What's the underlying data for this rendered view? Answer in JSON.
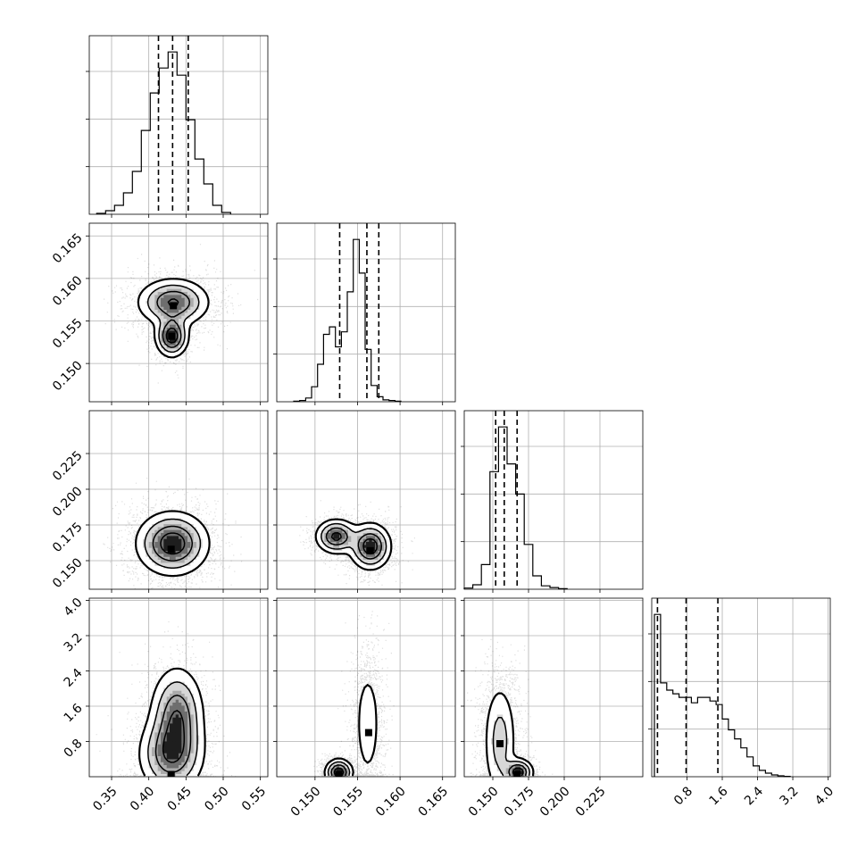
{
  "chart_data": {
    "type": "corner",
    "parameters": 4,
    "grid": true,
    "colors": {
      "line": "#000000",
      "grid": "#b0b0b0",
      "scatter": "#000000"
    },
    "axes": {
      "p0": {
        "range": [
          0.32,
          0.56
        ],
        "ticks": [
          0.35,
          0.4,
          0.45,
          0.5,
          0.55
        ],
        "tick_labels": [
          "0.35",
          "0.40",
          "0.45",
          "0.50",
          "0.55"
        ]
      },
      "p1": {
        "range": [
          0.1455,
          0.1665
        ],
        "ticks": [
          0.15,
          0.155,
          0.16,
          0.165
        ],
        "tick_labels": [
          "0.150",
          "0.155",
          "0.160",
          "0.165"
        ]
      },
      "p2": {
        "range": [
          0.13,
          0.255
        ],
        "ticks": [
          0.15,
          0.175,
          0.2,
          0.225
        ],
        "tick_labels": [
          "0.150",
          "0.175",
          "0.200",
          "0.225"
        ]
      },
      "p3": {
        "range": [
          0.0,
          4.05
        ],
        "ticks": [
          0.8,
          1.6,
          2.4,
          3.2,
          4.0
        ],
        "tick_labels": [
          "0.8",
          "1.6",
          "2.4",
          "3.2",
          "4.0"
        ]
      }
    },
    "histograms": [
      {
        "param": "p0",
        "bin_edges": [
          0.33,
          0.342,
          0.354,
          0.366,
          0.378,
          0.39,
          0.402,
          0.414,
          0.426,
          0.438,
          0.45,
          0.462,
          0.474,
          0.486,
          0.498,
          0.51
        ],
        "counts": [
          0.05,
          0.2,
          0.5,
          1.2,
          2.4,
          4.7,
          6.8,
          8.2,
          9.1,
          7.8,
          5.3,
          3.1,
          1.7,
          0.5,
          0.1
        ],
        "quantiles": [
          0.413,
          0.432,
          0.453
        ]
      },
      {
        "param": "p1",
        "bin_edges": [
          0.1475,
          0.1482,
          0.1489,
          0.1496,
          0.1503,
          0.151,
          0.1517,
          0.1524,
          0.1531,
          0.1538,
          0.1545,
          0.1552,
          0.1559,
          0.1566,
          0.1573,
          0.158,
          0.1587,
          0.1594,
          0.1601
        ],
        "counts": [
          0.05,
          0.1,
          0.3,
          1.2,
          3.0,
          5.4,
          6.0,
          4.4,
          5.6,
          8.8,
          13.0,
          10.3,
          4.2,
          1.3,
          0.4,
          0.15,
          0.1,
          0.05
        ],
        "quantiles": [
          0.1529,
          0.1561,
          0.1575
        ]
      },
      {
        "param": "p2",
        "bin_edges": [
          0.13,
          0.136,
          0.142,
          0.148,
          0.154,
          0.16,
          0.166,
          0.172,
          0.178,
          0.184,
          0.19,
          0.196,
          0.202
        ],
        "counts": [
          0.1,
          0.4,
          2.2,
          10.5,
          14.5,
          11.2,
          8.5,
          4.0,
          1.2,
          0.3,
          0.15,
          0.05
        ],
        "quantiles": [
          0.152,
          0.158,
          0.167
        ]
      },
      {
        "param": "p3",
        "bin_edges": [
          0.06,
          0.2,
          0.34,
          0.48,
          0.62,
          0.76,
          0.9,
          1.04,
          1.18,
          1.32,
          1.46,
          1.6,
          1.74,
          1.88,
          2.02,
          2.16,
          2.3,
          2.44,
          2.58,
          2.72,
          2.86,
          3.0,
          3.14
        ],
        "counts": [
          9.0,
          5.2,
          4.8,
          4.6,
          4.4,
          4.4,
          4.1,
          4.4,
          4.4,
          4.2,
          4.0,
          3.2,
          2.6,
          2.1,
          1.6,
          1.1,
          0.6,
          0.35,
          0.2,
          0.1,
          0.05,
          0.02
        ],
        "quantiles": [
          0.13,
          0.78,
          1.5
        ]
      }
    ],
    "pairs": [
      {
        "x": "p0",
        "y": "p1",
        "modes": [
          {
            "x": 0.433,
            "y": 0.1572,
            "sx": 0.024,
            "sy": 0.0014,
            "w": 0.68
          },
          {
            "x": 0.431,
            "y": 0.1532,
            "sx": 0.011,
            "sy": 0.0012,
            "w": 0.32
          }
        ],
        "peaks": [
          {
            "x": 0.433,
            "y": 0.1568
          },
          {
            "x": 0.431,
            "y": 0.1532
          }
        ]
      },
      {
        "x": "p0",
        "y": "p2",
        "modes": [
          {
            "x": 0.432,
            "y": 0.162,
            "sx": 0.024,
            "sy": 0.011,
            "w": 1.0
          }
        ],
        "peaks": [
          {
            "x": 0.43,
            "y": 0.158
          }
        ]
      },
      {
        "x": "p1",
        "y": "p2",
        "modes": [
          {
            "x": 0.1525,
            "y": 0.167,
            "sx": 0.0012,
            "sy": 0.006,
            "w": 0.4
          },
          {
            "x": 0.1565,
            "y": 0.16,
            "sx": 0.0012,
            "sy": 0.008,
            "w": 0.6
          }
        ],
        "peaks": [
          {
            "x": 0.1565,
            "y": 0.157
          }
        ]
      },
      {
        "x": "p0",
        "y": "p3",
        "modes": [
          {
            "x": 0.43,
            "y": 0.5,
            "sx": 0.022,
            "sy": 0.45,
            "w": 0.5
          },
          {
            "x": 0.438,
            "y": 1.4,
            "sx": 0.018,
            "sy": 0.55,
            "w": 0.5
          }
        ],
        "peaks": [
          {
            "x": 0.43,
            "y": 0.05
          }
        ]
      },
      {
        "x": "p1",
        "y": "p3",
        "modes": [
          {
            "x": 0.1528,
            "y": 0.1,
            "sx": 0.0008,
            "sy": 0.15,
            "w": 0.45
          },
          {
            "x": 0.1562,
            "y": 1.2,
            "sx": 0.0008,
            "sy": 0.7,
            "w": 0.55
          }
        ],
        "peaks": [
          {
            "x": 0.1528,
            "y": 0.05
          },
          {
            "x": 0.1563,
            "y": 1.0
          }
        ]
      },
      {
        "x": "p2",
        "y": "p3",
        "modes": [
          {
            "x": 0.155,
            "y": 0.8,
            "sx": 0.006,
            "sy": 0.7,
            "w": 0.7
          },
          {
            "x": 0.168,
            "y": 0.1,
            "sx": 0.005,
            "sy": 0.15,
            "w": 0.3
          }
        ],
        "peaks": [
          {
            "x": 0.155,
            "y": 0.75
          },
          {
            "x": 0.167,
            "y": 0.05
          }
        ]
      }
    ]
  }
}
